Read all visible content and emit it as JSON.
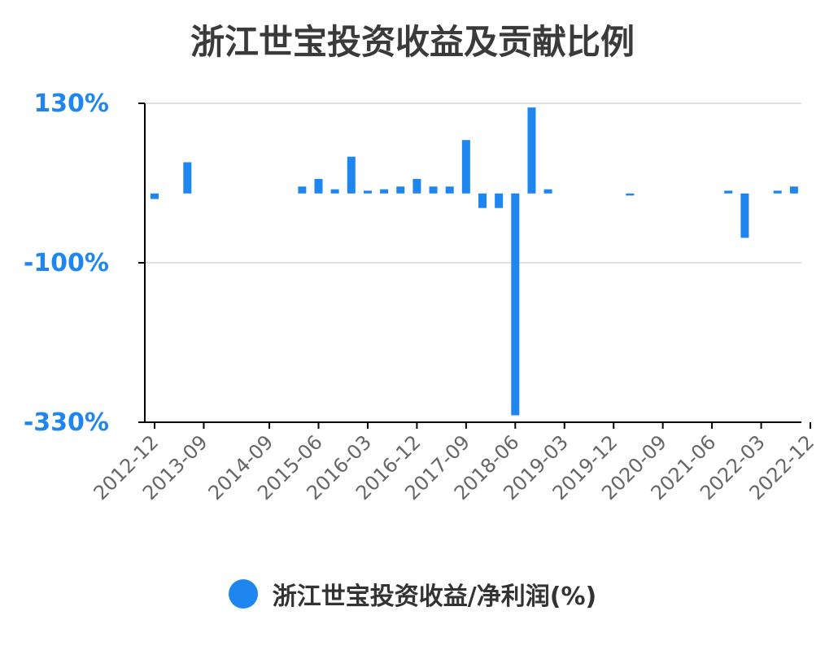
{
  "chart_data": {
    "type": "bar",
    "title": "浙江世宝投资收益及贡献比例",
    "xlabel": "",
    "ylabel": "",
    "ylim": [
      -330,
      130
    ],
    "yticks": [
      "130%",
      "-100%",
      "-330%"
    ],
    "ytick_values": [
      130,
      -100,
      -330
    ],
    "xtick_labels": [
      "2012-12",
      "2013-09",
      "2014-09",
      "2015-06",
      "2016-03",
      "2016-12",
      "2017-09",
      "2018-06",
      "2019-03",
      "2019-12",
      "2020-09",
      "2021-06",
      "2022-03",
      "2022-12"
    ],
    "grid": true,
    "legend_position": "bottom",
    "categories": [
      "2012-12",
      "2013-03",
      "2013-06",
      "2013-09",
      "2013-12",
      "2014-03",
      "2014-06",
      "2014-09",
      "2014-12",
      "2015-03",
      "2015-06",
      "2015-09",
      "2015-12",
      "2016-03",
      "2016-06",
      "2016-09",
      "2016-12",
      "2017-03",
      "2017-06",
      "2017-09",
      "2017-12",
      "2018-03",
      "2018-06",
      "2018-09",
      "2018-12",
      "2019-03",
      "2019-06",
      "2019-09",
      "2019-12",
      "2020-03",
      "2020-06",
      "2020-09",
      "2020-12",
      "2021-03",
      "2021-06",
      "2021-09",
      "2021-12",
      "2022-03",
      "2022-06",
      "2022-09",
      "2022-12"
    ],
    "series": [
      {
        "name": "浙江世宝投资收益/净利润(%)",
        "color": "#1f86f0",
        "values": [
          -8,
          0,
          45,
          0,
          0,
          0,
          0,
          0,
          0,
          10,
          21,
          6,
          53,
          4,
          6,
          10,
          21,
          10,
          10,
          77,
          -21,
          -21,
          -320,
          124,
          6,
          0,
          0,
          0,
          0,
          -3,
          0,
          0,
          0,
          0,
          0,
          4,
          -64,
          0,
          4,
          10,
          0
        ]
      }
    ]
  },
  "colors": {
    "bar": "#1f86f0",
    "ytick": "#1f86f0",
    "xtick": "#666666",
    "axis": "#000000",
    "grid": "#e0e0e0"
  },
  "legend": {
    "label": "浙江世宝投资收益/净利润(%)",
    "marker": "circle"
  }
}
